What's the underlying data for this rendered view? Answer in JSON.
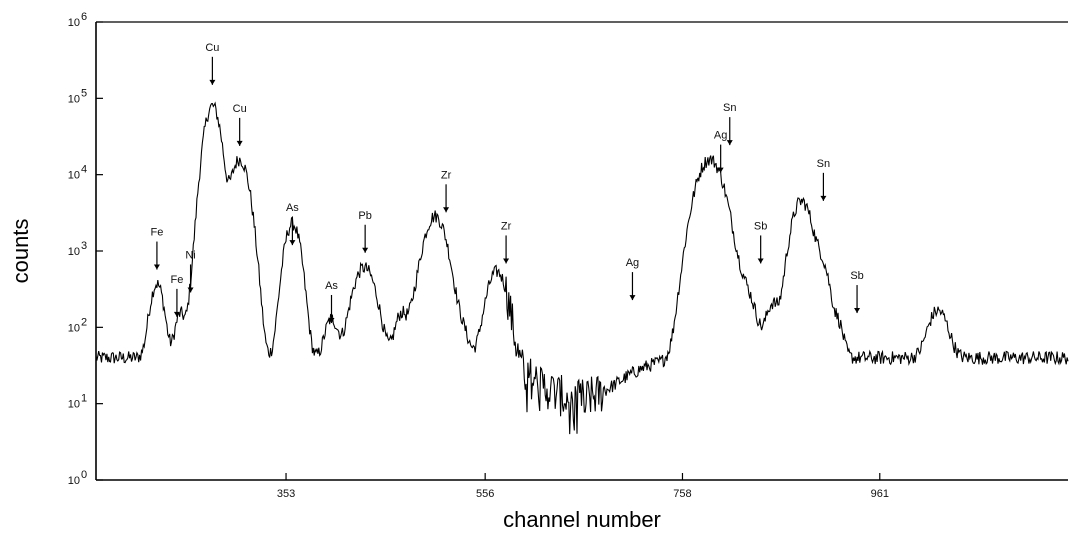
{
  "chart_data": {
    "type": "line",
    "xlabel": "channel number",
    "ylabel": "counts",
    "xlim": [
      0,
      1069
    ],
    "ylim_log10": [
      0,
      6
    ],
    "y_scale": "log",
    "grid": false,
    "x_ticks": [
      {
        "value": 209,
        "label": "353"
      },
      {
        "value": 428,
        "label": "556"
      },
      {
        "value": 645,
        "label": "758"
      },
      {
        "value": 862,
        "label": "961"
      }
    ],
    "y_ticks": [
      {
        "exp": 0,
        "base": "10",
        "sup": "0"
      },
      {
        "exp": 1,
        "base": "10",
        "sup": "1"
      },
      {
        "exp": 2,
        "base": "10",
        "sup": "2"
      },
      {
        "exp": 3,
        "base": "10",
        "sup": "3"
      },
      {
        "exp": 4,
        "base": "10",
        "sup": "4"
      },
      {
        "exp": 5,
        "base": "10",
        "sup": "5"
      },
      {
        "exp": 6,
        "base": "10",
        "sup": "6"
      }
    ],
    "baseline_log10": 1.6,
    "peaks": [
      {
        "x": 67,
        "h": 2.52,
        "w": 6
      },
      {
        "x": 93,
        "h": 2.05,
        "w": 5
      },
      {
        "x": 106,
        "h": 2.2,
        "w": 4
      },
      {
        "x": 128,
        "h": 4.9,
        "w": 7
      },
      {
        "x": 158,
        "h": 4.2,
        "w": 8
      },
      {
        "x": 216,
        "h": 3.35,
        "w": 7
      },
      {
        "x": 259,
        "h": 1.95,
        "w": 6
      },
      {
        "x": 295,
        "h": 2.75,
        "w": 10
      },
      {
        "x": 336,
        "h": 2.05,
        "w": 6
      },
      {
        "x": 350,
        "h": 1.8,
        "w": 5
      },
      {
        "x": 373,
        "h": 3.45,
        "w": 10
      },
      {
        "x": 401,
        "h": 1.75,
        "w": 7
      },
      {
        "x": 441,
        "h": 2.7,
        "w": 9
      },
      {
        "x": 744,
        "h": 2.2,
        "w": 6
      },
      {
        "x": 675,
        "h": 4.2,
        "w": 12
      },
      {
        "x": 710,
        "h": 2.5,
        "w": 11
      },
      {
        "x": 776,
        "h": 3.65,
        "w": 9
      },
      {
        "x": 798,
        "h": 2.8,
        "w": 7
      },
      {
        "x": 816,
        "h": 1.85,
        "w": 5
      },
      {
        "x": 926,
        "h": 2.1,
        "w": 9
      }
    ],
    "peak_labels": [
      {
        "label": "Fe",
        "x": 67,
        "y_log10": 3.15
      },
      {
        "label": "Fe",
        "x": 89,
        "y_log10": 2.53
      },
      {
        "label": "Ni",
        "x": 104,
        "y_log10": 2.85
      },
      {
        "label": "Cu",
        "x": 128,
        "y_log10": 5.57
      },
      {
        "label": "Cu",
        "x": 158,
        "y_log10": 4.77
      },
      {
        "label": "As",
        "x": 216,
        "y_log10": 3.47
      },
      {
        "label": "As",
        "x": 259,
        "y_log10": 2.45
      },
      {
        "label": "Pb",
        "x": 296,
        "y_log10": 3.37
      },
      {
        "label": "Zr",
        "x": 385,
        "y_log10": 3.9
      },
      {
        "label": "Zr",
        "x": 451,
        "y_log10": 3.23
      },
      {
        "label": "Ag",
        "x": 590,
        "y_log10": 2.75
      },
      {
        "label": "Ag",
        "x": 687,
        "y_log10": 4.42
      },
      {
        "label": "Sn",
        "x": 697,
        "y_log10": 4.78
      },
      {
        "label": "Sb",
        "x": 731,
        "y_log10": 3.23
      },
      {
        "label": "Sn",
        "x": 800,
        "y_log10": 4.05
      },
      {
        "label": "Sb",
        "x": 837,
        "y_log10": 2.58
      }
    ]
  }
}
